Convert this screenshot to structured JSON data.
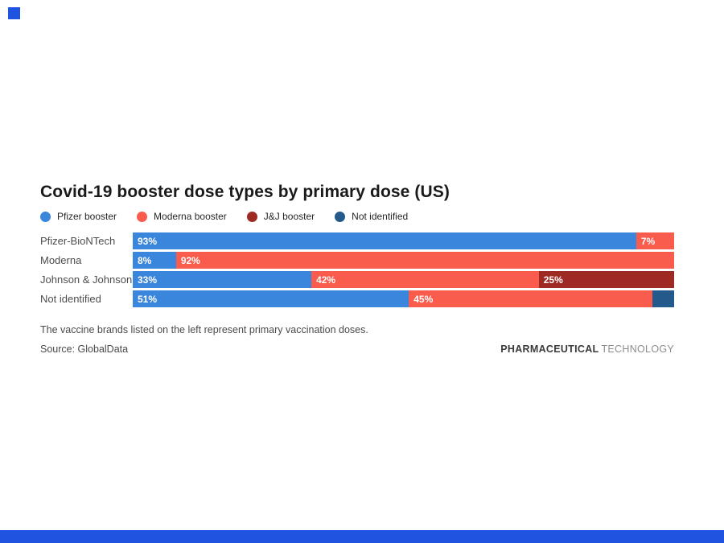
{
  "page": {
    "background": "#ffffff",
    "brand_accent_color": "#2053e0"
  },
  "title": "Covid-19 booster dose types by primary dose (US)",
  "legend": [
    {
      "label": "Pfizer booster",
      "color": "#3a86dc"
    },
    {
      "label": "Moderna booster",
      "color": "#f95c4c"
    },
    {
      "label": "J&J booster",
      "color": "#9e2b23"
    },
    {
      "label": "Not identified",
      "color": "#23598b"
    }
  ],
  "chart_data": {
    "type": "bar",
    "stacked": true,
    "orientation": "horizontal",
    "title": "Covid-19 booster dose types by primary dose (US)",
    "xlim": [
      0,
      100
    ],
    "value_suffix": "%",
    "grid": false,
    "legend_position": "top",
    "categories": [
      "Pfizer-BioNTech",
      "Moderna",
      "Johnson & Johnson",
      "Not identified"
    ],
    "series": [
      {
        "name": "Pfizer booster",
        "color": "#3a86dc",
        "values": [
          93,
          8,
          33,
          51
        ]
      },
      {
        "name": "Moderna booster",
        "color": "#f95c4c",
        "values": [
          7,
          92,
          42,
          45
        ]
      },
      {
        "name": "J&J booster",
        "color": "#9e2b23",
        "values": [
          0,
          0,
          25,
          0
        ]
      },
      {
        "name": "Not identified",
        "color": "#23598b",
        "values": [
          0,
          0,
          0,
          4
        ]
      }
    ],
    "rows": [
      {
        "category": "Pfizer-BioNTech",
        "segments": [
          {
            "series": "Pfizer booster",
            "color": "#3a86dc",
            "value": 93,
            "label": "93%"
          },
          {
            "series": "Moderna booster",
            "color": "#f95c4c",
            "value": 7,
            "label": "7%"
          }
        ]
      },
      {
        "category": "Moderna",
        "segments": [
          {
            "series": "Pfizer booster",
            "color": "#3a86dc",
            "value": 8,
            "label": "8%"
          },
          {
            "series": "Moderna booster",
            "color": "#f95c4c",
            "value": 92,
            "label": "92%"
          }
        ]
      },
      {
        "category": "Johnson & Johnson",
        "segments": [
          {
            "series": "Pfizer booster",
            "color": "#3a86dc",
            "value": 33,
            "label": "33%"
          },
          {
            "series": "Moderna booster",
            "color": "#f95c4c",
            "value": 42,
            "label": "42%"
          },
          {
            "series": "J&J booster",
            "color": "#9e2b23",
            "value": 25,
            "label": "25%"
          }
        ]
      },
      {
        "category": "Not identified",
        "segments": [
          {
            "series": "Pfizer booster",
            "color": "#3a86dc",
            "value": 51,
            "label": "51%"
          },
          {
            "series": "Moderna booster",
            "color": "#f95c4c",
            "value": 45,
            "label": "45%"
          },
          {
            "series": "Not identified",
            "color": "#23598b",
            "value": 4,
            "label": ""
          }
        ]
      }
    ]
  },
  "note": "The vaccine brands listed on the left represent primary vaccination doses.",
  "source": "Source: GlobalData",
  "logo": {
    "bold": "PHARMACEUTICAL",
    "light": "TECHNOLOGY"
  }
}
